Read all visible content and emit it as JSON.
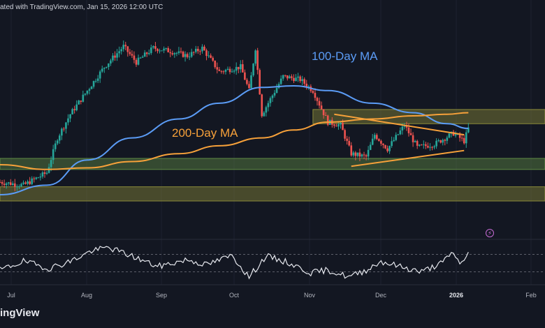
{
  "header": {
    "published": "ated with TradingView.com, Jan 15, 2026 12:00 UTC"
  },
  "brand": {
    "name": "ingView"
  },
  "labels": {
    "ma100": "100-Day MA",
    "ma200": "200-Day MA"
  },
  "colors": {
    "background": "#131722",
    "candle_up": "#26a69a",
    "candle_down": "#ef5350",
    "ma100": "#5b9cf6",
    "ma200": "#f7a13a",
    "wedge": "#f7a13a",
    "zone_green": "#5f8a45",
    "zone_olive": "#8a8a3a",
    "rsi_line": "#e6e8ee",
    "event_icon": "#c66bd4"
  },
  "icons": {
    "event": "lightning-icon"
  },
  "chart_data": [
    {
      "type": "candlestick",
      "title": "",
      "x_tick_labels": [
        "Jul",
        "Aug",
        "Sep",
        "Oct",
        "Nov",
        "Dec",
        "2026",
        "Feb"
      ],
      "x_range": [
        "2025-06-09",
        "2026-02-20"
      ],
      "y_range_relative": [
        0,
        1
      ],
      "price_shape_keypoints": {
        "x": [
          "2025-06-09",
          "2025-06-20",
          "2025-07-01",
          "2025-07-06",
          "2025-07-12",
          "2025-07-20",
          "2025-07-28",
          "2025-08-06",
          "2025-08-12",
          "2025-08-20",
          "2025-08-28",
          "2025-09-05",
          "2025-09-12",
          "2025-09-20",
          "2025-09-30",
          "2025-10-04",
          "2025-10-07",
          "2025-10-10",
          "2025-10-20",
          "2025-10-28",
          "2025-11-03",
          "2025-11-10",
          "2025-11-16",
          "2025-11-21",
          "2025-11-28",
          "2025-12-02",
          "2025-12-08",
          "2025-12-16",
          "2025-12-22",
          "2025-12-30",
          "2026-01-08",
          "2026-01-13",
          "2026-01-15"
        ],
        "y": [
          0.12,
          0.1,
          0.18,
          0.4,
          0.55,
          0.7,
          0.85,
          0.98,
          0.88,
          0.97,
          0.95,
          0.92,
          0.97,
          0.82,
          0.85,
          0.7,
          0.97,
          0.55,
          0.79,
          0.77,
          0.7,
          0.5,
          0.48,
          0.3,
          0.28,
          0.42,
          0.33,
          0.48,
          0.34,
          0.36,
          0.43,
          0.38,
          0.46
        ]
      },
      "moving_averages": [
        {
          "name": "100-Day MA",
          "x": [
            "2025-06-09",
            "2025-07-01",
            "2025-07-20",
            "2025-08-10",
            "2025-09-01",
            "2025-09-20",
            "2025-10-10",
            "2025-10-25",
            "2025-11-10",
            "2025-12-01",
            "2025-12-20",
            "2026-01-05",
            "2026-01-15"
          ],
          "y": [
            0.04,
            0.1,
            0.26,
            0.4,
            0.52,
            0.62,
            0.72,
            0.73,
            0.7,
            0.62,
            0.56,
            0.49,
            0.46
          ]
        },
        {
          "name": "200-Day MA",
          "x": [
            "2025-06-09",
            "2025-07-01",
            "2025-07-20",
            "2025-08-10",
            "2025-09-01",
            "2025-09-20",
            "2025-10-10",
            "2025-10-25",
            "2025-11-10",
            "2025-12-01",
            "2025-12-20",
            "2026-01-05",
            "2026-01-15"
          ],
          "y": [
            0.23,
            0.2,
            0.21,
            0.25,
            0.3,
            0.35,
            0.4,
            0.45,
            0.5,
            0.52,
            0.54,
            0.55,
            0.56
          ]
        }
      ],
      "zones": [
        {
          "name": "upper resistance zone",
          "x": [
            "2025-11-03",
            "2026-02-20"
          ],
          "y": [
            0.49,
            0.58
          ]
        },
        {
          "name": "lower support zone",
          "x": [
            "2025-06-09",
            "2026-02-20"
          ],
          "y": [
            0.2,
            0.27
          ]
        },
        {
          "name": "lowest support zone",
          "x": [
            "2025-06-09",
            "2026-02-20"
          ],
          "y": [
            0.0,
            0.09
          ]
        }
      ],
      "trendlines": [
        {
          "name": "wedge upper",
          "x": [
            "2025-11-13",
            "2026-01-13"
          ],
          "y": [
            0.55,
            0.42
          ]
        },
        {
          "name": "wedge lower",
          "x": [
            "2025-11-21",
            "2026-01-13"
          ],
          "y": [
            0.22,
            0.32
          ]
        }
      ]
    },
    {
      "type": "line",
      "title": "",
      "series_name": "oscillator",
      "y_range_relative": [
        0,
        1
      ],
      "reference_levels": [
        0.75,
        0.25
      ],
      "x": [
        "2025-06-09",
        "2025-06-20",
        "2025-07-02",
        "2025-07-12",
        "2025-07-22",
        "2025-07-30",
        "2025-08-10",
        "2025-08-22",
        "2025-09-05",
        "2025-09-14",
        "2025-09-26",
        "2025-10-04",
        "2025-10-12",
        "2025-10-22",
        "2025-11-02",
        "2025-11-10",
        "2025-11-20",
        "2025-11-28",
        "2025-12-05",
        "2025-12-14",
        "2025-12-24",
        "2026-01-03",
        "2026-01-08",
        "2026-01-11",
        "2026-01-15"
      ],
      "y": [
        0.3,
        0.55,
        0.35,
        0.55,
        0.85,
        0.95,
        0.7,
        0.4,
        0.6,
        0.45,
        0.72,
        0.1,
        0.7,
        0.52,
        0.22,
        0.3,
        0.1,
        0.3,
        0.55,
        0.4,
        0.25,
        0.52,
        0.82,
        0.45,
        0.8
      ]
    }
  ]
}
